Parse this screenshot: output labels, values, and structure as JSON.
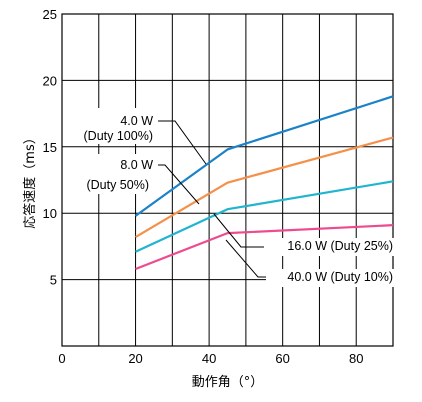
{
  "chart_data": {
    "type": "line",
    "xlabel": "動作角（°）",
    "ylabel": "応答速度（ms）",
    "xlim": [
      0,
      90
    ],
    "ylim": [
      0,
      25
    ],
    "x_ticks": [
      "0",
      "20",
      "40",
      "60",
      "80"
    ],
    "y_ticks": [
      "5",
      "10",
      "15",
      "20",
      "25"
    ],
    "grid": true,
    "series": [
      {
        "name": "4.0 W (Duty 100%)",
        "color": "#1a82c8",
        "x": [
          20,
          45,
          90
        ],
        "y": [
          9.8,
          14.8,
          18.8
        ]
      },
      {
        "name": "8.0 W (Duty 50%)",
        "color": "#f4904a",
        "x": [
          20,
          45,
          90
        ],
        "y": [
          8.2,
          12.3,
          15.7
        ]
      },
      {
        "name": "16.0 W (Duty 25%)",
        "color": "#1fb5cf",
        "x": [
          20,
          45,
          90
        ],
        "y": [
          7.1,
          10.3,
          12.4
        ]
      },
      {
        "name": "40.0 W (Duty 10%)",
        "color": "#ee4b8f",
        "x": [
          20,
          45,
          90
        ],
        "y": [
          5.8,
          8.5,
          9.1
        ]
      }
    ],
    "annotations": [
      {
        "lines": [
          "4.0 W",
          "(Duty 100%)"
        ]
      },
      {
        "lines": [
          "8.0 W",
          "(Duty 50%)"
        ]
      },
      {
        "lines": [
          "16.0 W (Duty 25%)"
        ]
      },
      {
        "lines": [
          "40.0 W (Duty 10%)"
        ]
      }
    ]
  }
}
